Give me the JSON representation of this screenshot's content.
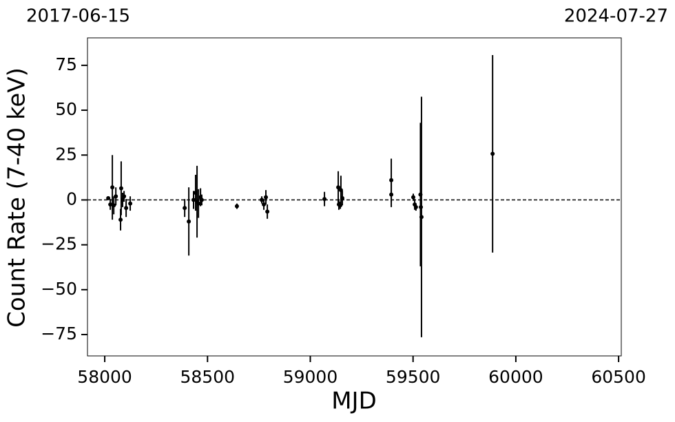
{
  "chart_data": {
    "type": "errorbar",
    "top_labels": [
      "2017-06-15",
      "2024-07-27"
    ],
    "xlabel": "MJD",
    "ylabel": "Count Rate (7-40 keV)",
    "x": [
      58017,
      58027,
      58037,
      58044,
      58054,
      58077,
      58080,
      58087,
      58094,
      58104,
      58124,
      58389,
      58409,
      58432,
      58442,
      58449,
      58456,
      58466,
      58472,
      58643,
      58764,
      58774,
      58784,
      58791,
      59069,
      59136,
      59139,
      59146,
      59149,
      59156,
      59394,
      59394,
      59501,
      59508,
      59514,
      59536,
      59538,
      59541,
      59887
    ],
    "series": [
      {
        "color": "#000000",
        "values": [
          1,
          -2.5,
          7,
          -3,
          2,
          -11,
          6.5,
          0,
          2,
          -4.5,
          -2,
          -4.5,
          -12,
          0,
          4,
          -1,
          -2,
          1.5,
          0,
          -3.5,
          0,
          -2.5,
          1.5,
          -6.5,
          0.5,
          7,
          -2.5,
          -3,
          5.5,
          1,
          11,
          3,
          1.5,
          -2.5,
          -4,
          3,
          -4,
          -9.5,
          25.7
        ],
        "errors": [
          1,
          3,
          18,
          5,
          5,
          6,
          15,
          4,
          3,
          5,
          4,
          5,
          19,
          5,
          10,
          20,
          8,
          5,
          3,
          1.5,
          2,
          3,
          4,
          4,
          4,
          9,
          3,
          2,
          8,
          4,
          12,
          7,
          2,
          3,
          2,
          40,
          2,
          67,
          55
        ]
      }
    ],
    "hline": 0,
    "xlim": [
      57916,
      60513
    ],
    "xticks": [
      58000,
      58500,
      59000,
      59500,
      60000,
      60500
    ],
    "ylim": [
      -86.9,
      90.3
    ],
    "yticks": [
      {
        "value": -75,
        "label": "−75"
      },
      {
        "value": -50,
        "label": "−50"
      },
      {
        "value": -25,
        "label": "−25"
      },
      0,
      25,
      50,
      75
    ]
  }
}
